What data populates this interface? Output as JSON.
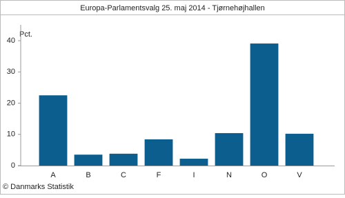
{
  "chart_data": {
    "type": "bar",
    "title": "Europa-Parlamentsvalg 25. maj 2014 - Tjørnehøjhallen",
    "y_label": "Pct.",
    "source": "© Danmarks Statistik",
    "categories": [
      "A",
      "B",
      "C",
      "F",
      "I",
      "N",
      "O",
      "V"
    ],
    "values": [
      22.5,
      3.5,
      3.8,
      8.4,
      2.2,
      10.4,
      39.1,
      10.2
    ],
    "color": "#0b5e8e",
    "ylim": [
      0,
      44
    ],
    "yticks": [
      0,
      10,
      20,
      30,
      40
    ],
    "grid": false
  }
}
